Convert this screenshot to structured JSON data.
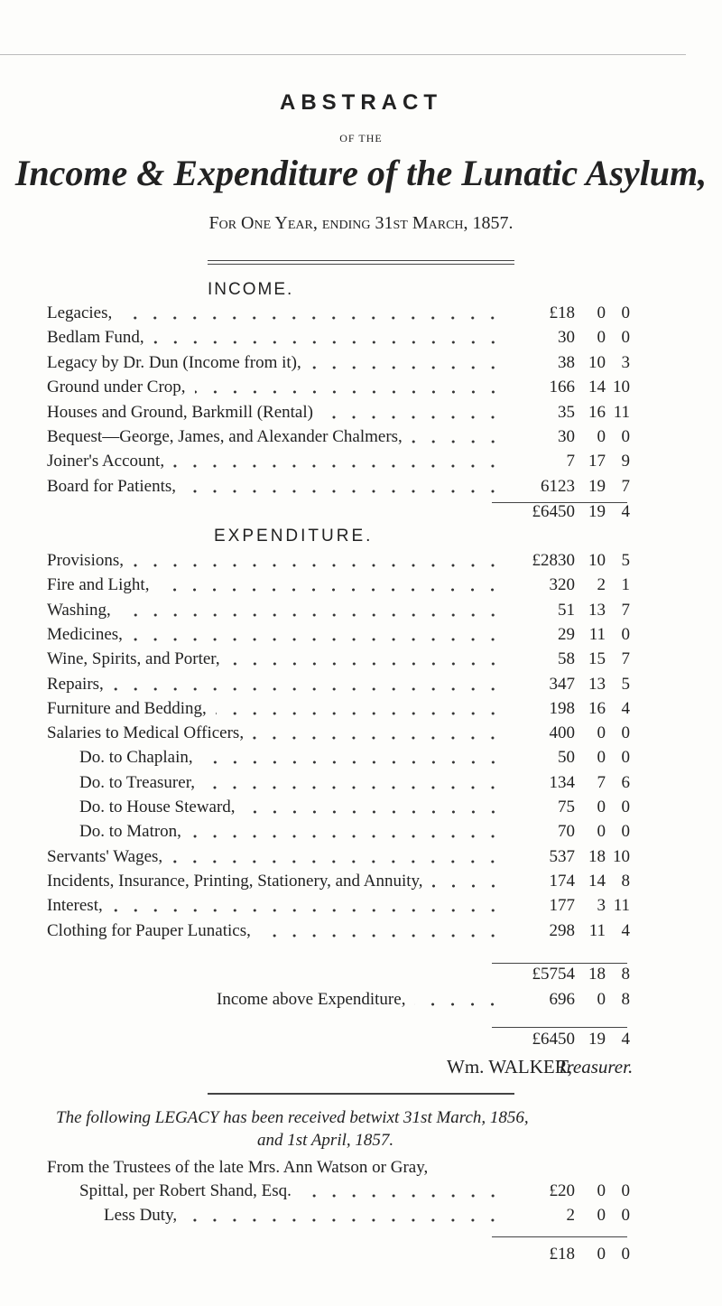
{
  "header": {
    "title": "ABSTRACT",
    "of_the": "OF THE",
    "main": "Income & Expenditure of the Lunatic Asylum,",
    "subtitle": "For One Year, ending 31st March, 1857."
  },
  "income": {
    "heading": "INCOME.",
    "rows": [
      {
        "label": "Legacies,",
        "pounds": "£18",
        "shillings": "0",
        "pence": "0"
      },
      {
        "label": "Bedlam Fund,",
        "pounds": "30",
        "shillings": "0",
        "pence": "0"
      },
      {
        "label": "Legacy by Dr. Dun (Income from it),",
        "pounds": "38",
        "shillings": "10",
        "pence": "3"
      },
      {
        "label": "Ground under Crop,",
        "pounds": "166",
        "shillings": "14",
        "pence": "10"
      },
      {
        "label": "Houses and Ground, Barkmill (Rental)",
        "pounds": "35",
        "shillings": "16",
        "pence": "11"
      },
      {
        "label": "Bequest—George, James, and Alexander Chalmers,",
        "pounds": "30",
        "shillings": "0",
        "pence": "0"
      },
      {
        "label": "Joiner's Account,",
        "pounds": "7",
        "shillings": "17",
        "pence": "9"
      },
      {
        "label": "Board for Patients,",
        "pounds": "6123",
        "shillings": "19",
        "pence": "7"
      }
    ],
    "total": {
      "pounds": "£6450",
      "shillings": "19",
      "pence": "4"
    }
  },
  "expenditure": {
    "heading": "EXPENDITURE.",
    "rows": [
      {
        "label": "Provisions,",
        "pounds": "£2830",
        "shillings": "10",
        "pence": "5"
      },
      {
        "label": "Fire and Light,",
        "pounds": "320",
        "shillings": "2",
        "pence": "1"
      },
      {
        "label": "Washing,",
        "pounds": "51",
        "shillings": "13",
        "pence": "7"
      },
      {
        "label": "Medicines,",
        "pounds": "29",
        "shillings": "11",
        "pence": "0"
      },
      {
        "label": "Wine, Spirits, and Porter,",
        "pounds": "58",
        "shillings": "15",
        "pence": "7"
      },
      {
        "label": "Repairs,",
        "pounds": "347",
        "shillings": "13",
        "pence": "5"
      },
      {
        "label": "Furniture and Bedding,",
        "pounds": "198",
        "shillings": "16",
        "pence": "4"
      },
      {
        "label": "Salaries to Medical Officers,",
        "pounds": "400",
        "shillings": "0",
        "pence": "0"
      },
      {
        "label": "Do.   to Chaplain,",
        "pounds": "50",
        "shillings": "0",
        "pence": "0"
      },
      {
        "label": "Do.   to Treasurer,",
        "pounds": "134",
        "shillings": "7",
        "pence": "6"
      },
      {
        "label": "Do.   to House Steward,",
        "pounds": "75",
        "shillings": "0",
        "pence": "0"
      },
      {
        "label": "Do.   to Matron,",
        "pounds": "70",
        "shillings": "0",
        "pence": "0"
      },
      {
        "label": "Servants' Wages,",
        "pounds": "537",
        "shillings": "18",
        "pence": "10"
      },
      {
        "label": "Incidents, Insurance, Printing, Stationery, and Annuity,",
        "pounds": "174",
        "shillings": "14",
        "pence": "8"
      },
      {
        "label": "Interest,",
        "pounds": "177",
        "shillings": "3",
        "pence": "11"
      },
      {
        "label": "Clothing for Pauper Lunatics,",
        "pounds": "298",
        "shillings": "11",
        "pence": "4"
      }
    ],
    "total": {
      "pounds": "£5754",
      "shillings": "18",
      "pence": "8"
    },
    "balance": {
      "label": "Income above Expenditure,",
      "pounds": "696",
      "shillings": "0",
      "pence": "8"
    },
    "grand_total": {
      "pounds": "£6450",
      "shillings": "19",
      "pence": "4"
    }
  },
  "signature": {
    "name": "Wm. WALKER,",
    "role": "Treasurer."
  },
  "legacy": {
    "intro_1": "The following LEGACY has been received betwixt 31st March, 1856,",
    "intro_2": "and 1st April, 1857.",
    "from": "From the Trustees of the late Mrs. Ann Watson or Gray,",
    "rows": [
      {
        "label": "Spittal, per Robert Shand, Esq.",
        "pounds": "£20",
        "shillings": "0",
        "pence": "0"
      },
      {
        "label": "Less Duty,",
        "pounds": "2",
        "shillings": "0",
        "pence": "0"
      }
    ],
    "total": {
      "pounds": "£18",
      "shillings": "0",
      "pence": "0"
    }
  }
}
